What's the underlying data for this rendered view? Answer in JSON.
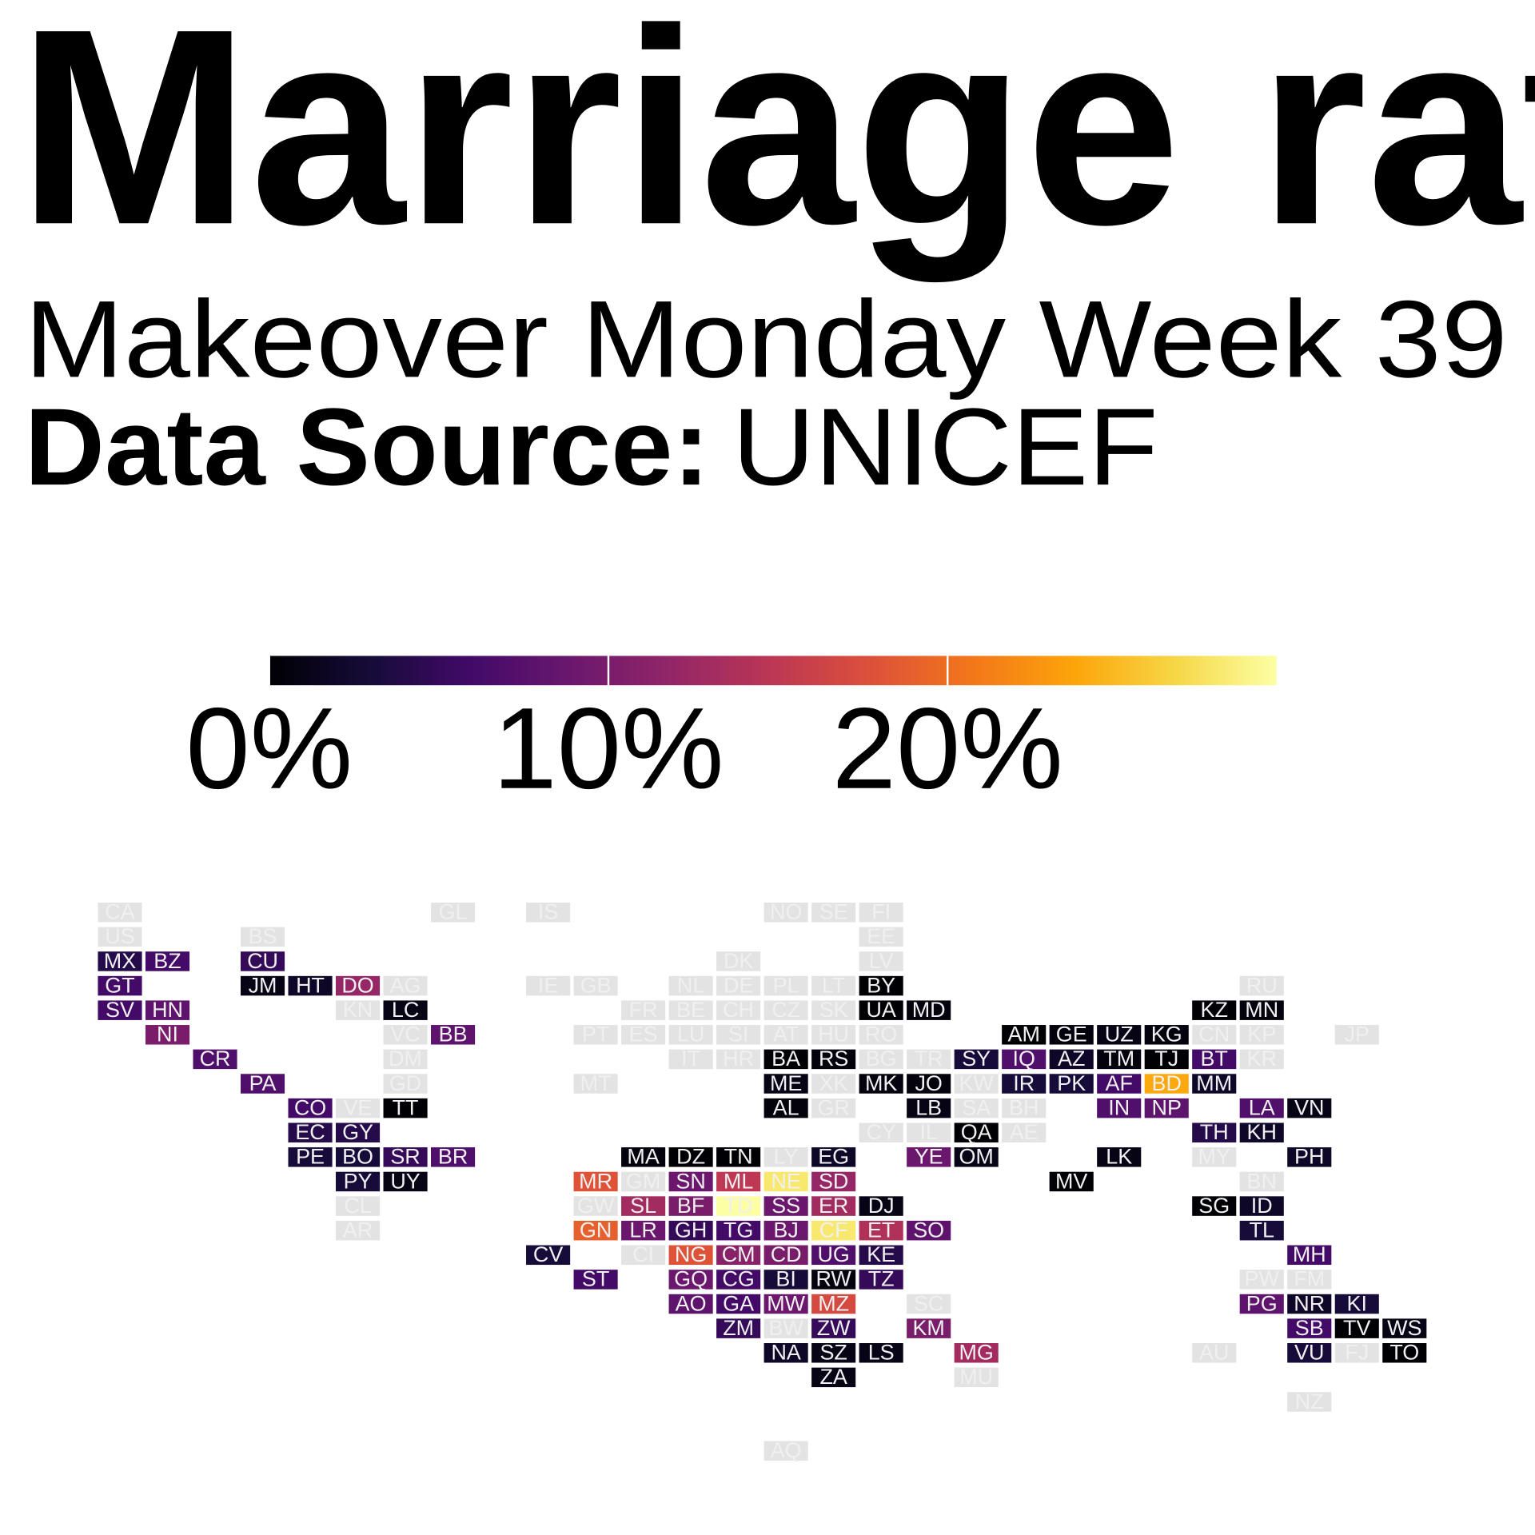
{
  "chart_data": {
    "type": "tilemap",
    "title": "Marriage rat",
    "subtitle": "Makeover Monday Week 39",
    "source_label": "Data Source:",
    "source": "UNICEF",
    "clim": [
      0,
      29.7
    ],
    "cticks": [
      {
        "value": 0,
        "label": "0%"
      },
      {
        "value": 10,
        "label": "10%"
      },
      {
        "value": 20,
        "label": "20%"
      }
    ],
    "colormap": [
      "#000004",
      "#160b39",
      "#420a68",
      "#6a176e",
      "#932667",
      "#bc3754",
      "#dd513a",
      "#f37819",
      "#fca50a",
      "#f6d746",
      "#fcffa4"
    ],
    "missing_color": "#e3e3e3",
    "categories": [
      "CA",
      "GL",
      "IS",
      "NO",
      "SE",
      "FI",
      "US",
      "BS",
      "EE",
      "MX",
      "BZ",
      "CU",
      "DK",
      "LV",
      "GT",
      "JM",
      "HT",
      "DO",
      "AG",
      "IE",
      "GB",
      "NL",
      "DE",
      "PL",
      "LT",
      "BY",
      "RU",
      "SV",
      "HN",
      "KN",
      "LC",
      "FR",
      "BE",
      "CH",
      "CZ",
      "SK",
      "UA",
      "MD",
      "KZ",
      "MN",
      "NI",
      "VC",
      "BB",
      "PT",
      "ES",
      "LU",
      "SI",
      "AT",
      "HU",
      "RO",
      "AM",
      "GE",
      "UZ",
      "KG",
      "CN",
      "KP",
      "JP",
      "CR",
      "DM",
      "IT",
      "HR",
      "BA",
      "RS",
      "BG",
      "TR",
      "SY",
      "IQ",
      "AZ",
      "TM",
      "TJ",
      "BT",
      "KR",
      "PA",
      "GD",
      "MT",
      "ME",
      "XK",
      "MK",
      "JO",
      "KW",
      "IR",
      "PK",
      "AF",
      "BD",
      "MM",
      "CO",
      "VE",
      "TT",
      "AL",
      "GR",
      "LB",
      "SA",
      "BH",
      "IN",
      "NP",
      "LA",
      "VN",
      "EC",
      "GY",
      "CY",
      "IL",
      "QA",
      "AE",
      "TH",
      "KH",
      "PE",
      "BO",
      "SR",
      "BR",
      "MA",
      "DZ",
      "TN",
      "LY",
      "EG",
      "YE",
      "OM",
      "LK",
      "MY",
      "PH",
      "PY",
      "UY",
      "MR",
      "GM",
      "SN",
      "ML",
      "NE",
      "SD",
      "MV",
      "BN",
      "CL",
      "GW",
      "SL",
      "BF",
      "TD",
      "SS",
      "ER",
      "DJ",
      "SG",
      "ID",
      "AR",
      "GN",
      "LR",
      "GH",
      "TG",
      "BJ",
      "CF",
      "ET",
      "SO",
      "TL",
      "CV",
      "CI",
      "NG",
      "CM",
      "CD",
      "UG",
      "KE",
      "MH",
      "ST",
      "GQ",
      "CG",
      "BI",
      "RW",
      "TZ",
      "PW",
      "FM",
      "AO",
      "GA",
      "MW",
      "MZ",
      "SC",
      "PG",
      "NR",
      "KI",
      "ZM",
      "BW",
      "ZW",
      "KM",
      "SB",
      "TV",
      "WS",
      "NA",
      "SZ",
      "LS",
      "MG",
      "AU",
      "VU",
      "FJ",
      "TO",
      "ZA",
      "MU",
      "NZ",
      "AQ"
    ],
    "values": [
      null,
      null,
      null,
      null,
      null,
      null,
      null,
      null,
      null,
      4,
      6,
      5,
      null,
      null,
      6,
      1,
      2,
      12,
      null,
      null,
      null,
      null,
      null,
      null,
      null,
      0,
      null,
      6,
      8,
      null,
      1,
      null,
      null,
      null,
      null,
      null,
      0,
      0.5,
      0,
      0.5,
      10,
      null,
      8,
      null,
      null,
      null,
      null,
      null,
      null,
      null,
      0,
      0.5,
      1,
      0.5,
      null,
      null,
      null,
      7,
      null,
      null,
      null,
      0,
      0.5,
      null,
      null,
      3,
      7,
      2,
      0.5,
      0,
      6,
      null,
      7,
      null,
      null,
      1,
      null,
      0.5,
      0.5,
      null,
      3,
      3,
      6,
      24,
      2,
      6,
      null,
      0,
      0.5,
      null,
      1,
      null,
      null,
      7,
      8,
      7,
      1,
      4,
      4,
      null,
      null,
      0,
      null,
      4,
      2,
      3,
      3,
      5,
      7,
      0.5,
      0,
      0,
      null,
      2,
      9,
      1,
      1,
      null,
      2,
      3,
      1,
      18,
      null,
      9,
      15,
      28,
      12,
      0,
      null,
      null,
      null,
      13,
      10,
      29.7,
      9,
      13,
      1,
      0,
      2,
      null,
      19,
      9,
      5,
      6,
      9,
      28,
      14,
      8,
      3,
      3,
      null,
      18,
      11,
      10,
      7,
      4,
      6,
      6,
      9,
      6,
      3,
      0.5,
      5,
      null,
      null,
      8,
      6,
      9,
      17,
      null,
      8,
      2,
      3,
      5,
      null,
      5,
      10,
      6,
      0,
      1,
      2,
      1,
      1,
      13,
      null,
      3,
      null,
      0,
      1,
      null,
      null,
      null
    ]
  }
}
